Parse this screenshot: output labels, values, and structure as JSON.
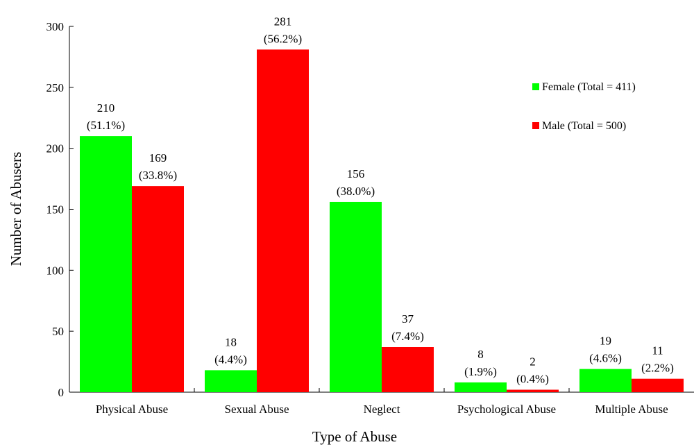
{
  "chart_data": {
    "type": "bar",
    "xlabel": "Type of Abuse",
    "ylabel": "Number of Abusers",
    "ylim": [
      0,
      300
    ],
    "yticks": [
      0,
      50,
      100,
      150,
      200,
      250,
      300
    ],
    "grid": false,
    "legend_position": "top-right",
    "categories": [
      "Physical Abuse",
      "Sexual Abuse",
      "Neglect",
      "Psychological Abuse",
      "Multiple Abuse"
    ],
    "series": [
      {
        "name": "Female (Total = 411)",
        "color": "#00ff00",
        "values": [
          210,
          18,
          156,
          8,
          19
        ],
        "percent_labels": [
          "(51.1%)",
          "(4.4%)",
          "(38.0%)",
          "(1.9%)",
          "(4.6%)"
        ]
      },
      {
        "name": "Male (Total = 500)",
        "color": "#ff0000",
        "values": [
          169,
          281,
          37,
          2,
          11
        ],
        "percent_labels": [
          "(33.8%)",
          "(56.2%)",
          "(7.4%)",
          "(0.4%)",
          "(2.2%)"
        ]
      }
    ]
  }
}
